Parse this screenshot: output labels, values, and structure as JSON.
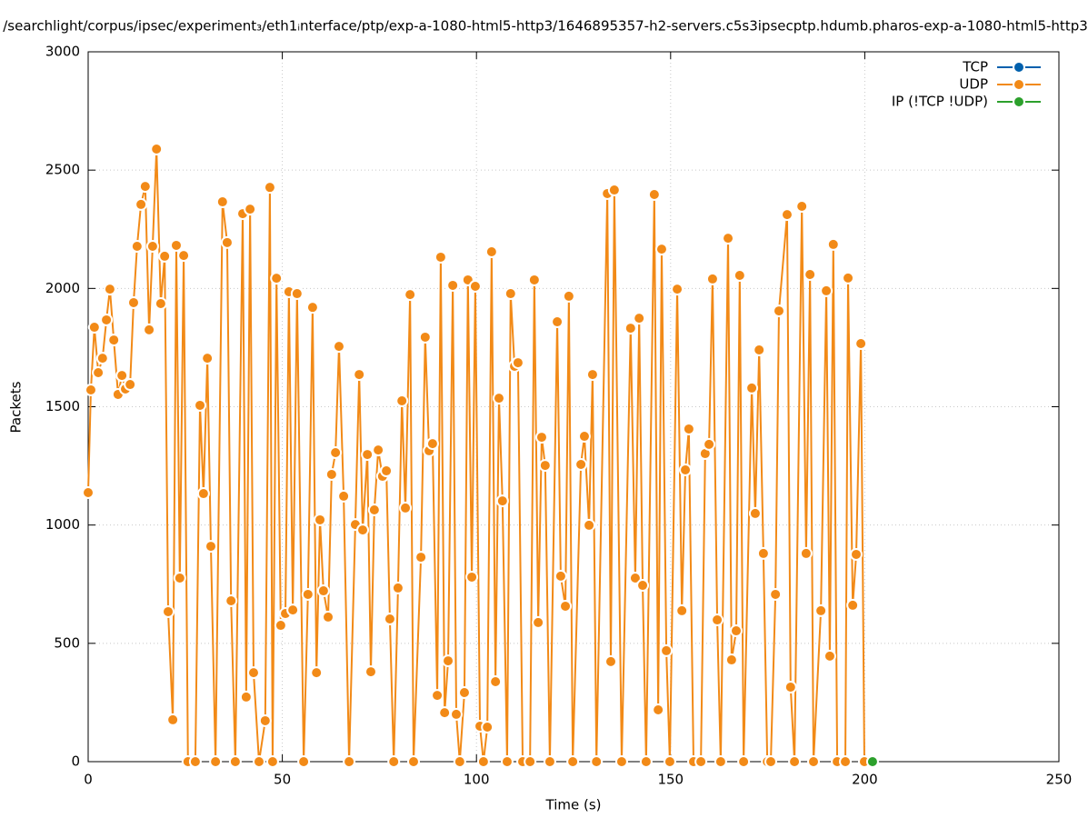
{
  "chart_data": {
    "type": "line",
    "title": "/searchlight/corpus/ipsec/experiment₃/eth1ᵢnterface/ptp/exp-a-1080-html5-http3/1646895357-h2-servers.c5s3ipsecptp.hdumb.pharos-exp-a-1080-html5-http3",
    "x_label": "Time (s)",
    "y_label": "Packets",
    "xlim": [
      0,
      250
    ],
    "xticks": [
      0,
      50,
      100,
      150,
      200,
      250
    ],
    "ylim": [
      0,
      3000
    ],
    "yticks": [
      0,
      500,
      1000,
      1500,
      2000,
      2500,
      3000
    ],
    "grid": true,
    "legend": "top-right",
    "series": [
      {
        "name": "TCP",
        "color": "#0060ad",
        "x": [],
        "values": []
      },
      {
        "name": "UDP",
        "color": "#f28a17",
        "x": [
          0,
          0.7,
          1.6,
          2.6,
          3.7,
          4.7,
          5.6,
          6.6,
          7.7,
          8.7,
          9.6,
          10.8,
          11.7,
          12.6,
          13.6,
          14.7,
          15.7,
          16.6,
          17.6,
          18.7,
          19.7,
          20.6,
          21.8,
          22.7,
          23.6,
          24.6,
          25.7,
          27.6,
          28.8,
          29.7,
          30.7,
          31.6,
          32.8,
          34.6,
          35.8,
          36.8,
          37.9,
          39.8,
          40.7,
          41.7,
          42.6,
          44,
          45.6,
          46.8,
          47.5,
          48.5,
          49.6,
          50.8,
          51.7,
          52.7,
          53.8,
          55.5,
          56.6,
          57.8,
          58.8,
          59.7,
          60.6,
          61.8,
          62.7,
          63.7,
          64.6,
          65.8,
          67.2,
          68.8,
          69.8,
          70.7,
          71.9,
          72.8,
          73.7,
          74.7,
          75.8,
          76.8,
          77.7,
          78.7,
          79.8,
          80.8,
          81.7,
          82.9,
          83.8,
          85.7,
          86.8,
          87.8,
          88.7,
          89.9,
          90.8,
          91.8,
          92.7,
          93.9,
          94.8,
          95.7,
          96.9,
          97.8,
          98.8,
          99.7,
          100.9,
          101.8,
          102.8,
          103.9,
          104.9,
          105.8,
          106.7,
          107.9,
          108.8,
          109.8,
          110.7,
          111.9,
          113.8,
          114.9,
          115.9,
          116.8,
          117.7,
          118.9,
          120.8,
          121.7,
          122.9,
          123.8,
          124.8,
          126.9,
          127.8,
          129,
          129.9,
          130.9,
          133.7,
          134.6,
          135.5,
          137.4,
          139.7,
          140.9,
          141.9,
          142.8,
          143.7,
          145.8,
          146.8,
          147.7,
          148.9,
          149.8,
          151.7,
          152.9,
          153.8,
          154.7,
          155.9,
          157.8,
          158.9,
          159.9,
          160.8,
          162,
          162.9,
          164.8,
          165.7,
          166.9,
          167.8,
          168.8,
          170.9,
          171.8,
          172.8,
          173.9,
          174.9,
          175.8,
          177,
          177.9,
          180,
          180.9,
          181.9,
          183.8,
          184.9,
          185.9,
          186.8,
          188.7,
          190.1,
          191,
          191.9,
          192.9,
          195,
          195.7,
          196.9,
          197.8,
          199,
          199.9
        ],
        "values": [
          1137,
          1571,
          1836,
          1644,
          1705,
          1867,
          1997,
          1782,
          1552,
          1632,
          1575,
          1594,
          1940,
          2178,
          2355,
          2431,
          1825,
          2178,
          2589,
          1936,
          2136,
          634,
          177,
          2182,
          776,
          2139,
          0,
          0,
          1506,
          1133,
          1705,
          910,
          0,
          2366,
          2194,
          680,
          0,
          2316,
          273,
          2335,
          376,
          0,
          173,
          2427,
          0,
          2043,
          576,
          626,
          1986,
          641,
          1978,
          0,
          707,
          1920,
          376,
          1022,
          722,
          611,
          1214,
          1306,
          1755,
          1122,
          0,
          1002,
          1636,
          979,
          1298,
          380,
          1064,
          1317,
          1206,
          1229,
          603,
          0,
          734,
          1525,
          1072,
          1974,
          0,
          864,
          1794,
          1314,
          1344,
          280,
          2132,
          207,
          426,
          2013,
          200,
          0,
          292,
          2036,
          780,
          2009,
          150,
          0,
          146,
          2155,
          338,
          1536,
          1102,
          0,
          1978,
          1671,
          1686,
          0,
          0,
          2036,
          588,
          1371,
          1252,
          0,
          1859,
          784,
          657,
          1967,
          0,
          1256,
          1375,
          999,
          1636,
          0,
          2401,
          423,
          2416,
          0,
          1832,
          776,
          1874,
          745,
          0,
          2397,
          219,
          2166,
          469,
          0,
          1997,
          638,
          1233,
          1406,
          0,
          0,
          1302,
          1341,
          2040,
          599,
          0,
          2212,
          430,
          553,
          2055,
          0,
          1579,
          1049,
          1740,
          880,
          0,
          0,
          707,
          1905,
          2312,
          315,
          0,
          2347,
          880,
          2059,
          0,
          638,
          1990,
          446,
          2186,
          0,
          0,
          2044,
          661,
          876,
          1767,
          0
        ]
      },
      {
        "name": "IP (!TCP  !UDP)",
        "color": "#2ca02c",
        "x": [
          202
        ],
        "values": [
          0
        ]
      }
    ]
  }
}
